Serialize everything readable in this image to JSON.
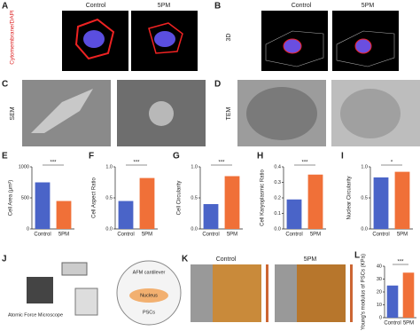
{
  "figure": {
    "a": {
      "letter": "A",
      "ylabel": "Cytomembrane/DAPI",
      "columns": [
        "Control",
        "5PM"
      ]
    },
    "b": {
      "letter": "B",
      "row": "3D",
      "columns": [
        "Control",
        "5PM"
      ]
    },
    "c": {
      "letter": "C",
      "row": "SEM"
    },
    "d": {
      "letter": "D",
      "row": "TEM"
    },
    "j": {
      "letter": "J",
      "labels": [
        "Atomic Force Microscope",
        "AFM cantilever",
        "Nucleus",
        "PSCs"
      ]
    },
    "k": {
      "letter": "K",
      "columns": [
        "Control",
        "5PM"
      ]
    }
  },
  "chart_data": [
    {
      "type": "bar",
      "letter": "E",
      "ylabel": "Cell Area (μm²)",
      "categories": [
        "Control",
        "5PM"
      ],
      "values": [
        750,
        450
      ],
      "colors": [
        "#4a64c8",
        "#f07038"
      ],
      "ylim": [
        0,
        1000
      ],
      "yticks": [
        0,
        500,
        1000
      ],
      "annotation": "***"
    },
    {
      "type": "bar",
      "letter": "F",
      "ylabel": "Cell Aspect Ratio",
      "categories": [
        "Control",
        "5PM"
      ],
      "values": [
        0.45,
        0.82
      ],
      "colors": [
        "#4a64c8",
        "#f07038"
      ],
      "ylim": [
        0,
        1
      ],
      "yticks": [
        {
          "value": 0,
          "label": "0.0"
        },
        0.5,
        {
          "value": 1,
          "label": "1.0"
        }
      ],
      "annotation": "***"
    },
    {
      "type": "bar",
      "letter": "G",
      "ylabel": "Cell Circularity",
      "categories": [
        "Control",
        "5PM"
      ],
      "values": [
        0.4,
        0.85
      ],
      "colors": [
        "#4a64c8",
        "#f07038"
      ],
      "ylim": [
        0,
        1
      ],
      "yticks": [
        {
          "value": 0,
          "label": "0.0"
        },
        0.5,
        {
          "value": 1,
          "label": "1.0"
        }
      ],
      "annotation": "***"
    },
    {
      "type": "bar",
      "letter": "H",
      "ylabel": "Cell Karyoplasmic Ratio",
      "categories": [
        "Control",
        "5PM"
      ],
      "values": [
        0.19,
        0.35
      ],
      "colors": [
        "#4a64c8",
        "#f07038"
      ],
      "ylim": [
        0,
        0.4
      ],
      "yticks": [
        {
          "value": 0,
          "label": "0.0"
        },
        0.1,
        0.2,
        0.3,
        0.4
      ],
      "annotation": "***"
    },
    {
      "type": "bar",
      "letter": "I",
      "ylabel": "Nuclear Circularity",
      "categories": [
        "Control",
        "5PM"
      ],
      "values": [
        0.83,
        0.92
      ],
      "colors": [
        "#4a64c8",
        "#f07038"
      ],
      "ylim": [
        0,
        1
      ],
      "yticks": [
        {
          "value": 0,
          "label": "0.0"
        },
        0.5,
        {
          "value": 1,
          "label": "1.0"
        }
      ],
      "annotation": "*"
    },
    {
      "type": "bar",
      "letter": "L",
      "ylabel": "Young's modulus of PSCs (KPa)",
      "categories": [
        "Control",
        "5PM"
      ],
      "values": [
        25,
        35
      ],
      "colors": [
        "#4a64c8",
        "#f07038"
      ],
      "ylim": [
        0,
        40
      ],
      "yticks": [
        0,
        10,
        20,
        30,
        40
      ],
      "annotation": "***"
    }
  ]
}
